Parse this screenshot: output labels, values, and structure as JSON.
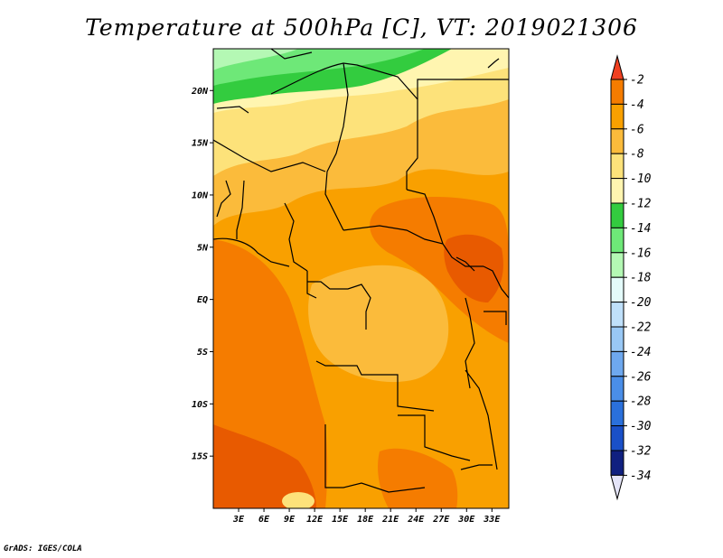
{
  "title": "Temperature at 500hPa [C], VT: 2019021306",
  "footer": "GrADS: IGES/COLA",
  "map": {
    "lon_range": [
      0,
      35
    ],
    "lat_range": [
      -20,
      24
    ],
    "lat_ticks": [
      {
        "value": 20,
        "label": "20N"
      },
      {
        "value": 15,
        "label": "15N"
      },
      {
        "value": 10,
        "label": "10N"
      },
      {
        "value": 5,
        "label": "5N"
      },
      {
        "value": 0,
        "label": "EQ"
      },
      {
        "value": -5,
        "label": "5S"
      },
      {
        "value": -10,
        "label": "10S"
      },
      {
        "value": -15,
        "label": "15S"
      }
    ],
    "lon_ticks": [
      {
        "value": 3,
        "label": "3E"
      },
      {
        "value": 6,
        "label": "6E"
      },
      {
        "value": 9,
        "label": "9E"
      },
      {
        "value": 12,
        "label": "12E"
      },
      {
        "value": 15,
        "label": "15E"
      },
      {
        "value": 18,
        "label": "18E"
      },
      {
        "value": 21,
        "label": "21E"
      },
      {
        "value": 24,
        "label": "24E"
      },
      {
        "value": 27,
        "label": "27E"
      },
      {
        "value": 30,
        "label": "30E"
      },
      {
        "value": 33,
        "label": "33E"
      }
    ]
  },
  "colorbar": {
    "levels": [
      {
        "label": "-2",
        "color": "#e85a00"
      },
      {
        "label": "-4",
        "color": "#f57c00"
      },
      {
        "label": "-6",
        "color": "#f9a000"
      },
      {
        "label": "-8",
        "color": "#fbbb3b"
      },
      {
        "label": "-10",
        "color": "#fde27a"
      },
      {
        "label": "-12",
        "color": "#fff5b0"
      },
      {
        "label": "-14",
        "color": "#33cc3f"
      },
      {
        "label": "-16",
        "color": "#6ee878"
      },
      {
        "label": "-18",
        "color": "#b4f8b4"
      },
      {
        "label": "-20",
        "color": "#e4fbfa"
      },
      {
        "label": "-22",
        "color": "#bfe0fa"
      },
      {
        "label": "-24",
        "color": "#99c8f5"
      },
      {
        "label": "-26",
        "color": "#6ea8ee"
      },
      {
        "label": "-28",
        "color": "#4a8ee8"
      },
      {
        "label": "-30",
        "color": "#2a70db"
      },
      {
        "label": "-32",
        "color": "#1a50c8"
      },
      {
        "label": "-34",
        "color": "#102080"
      }
    ],
    "top_arrow_color": "#f04020",
    "bottom_arrow_color": "#e4e4f8"
  }
}
